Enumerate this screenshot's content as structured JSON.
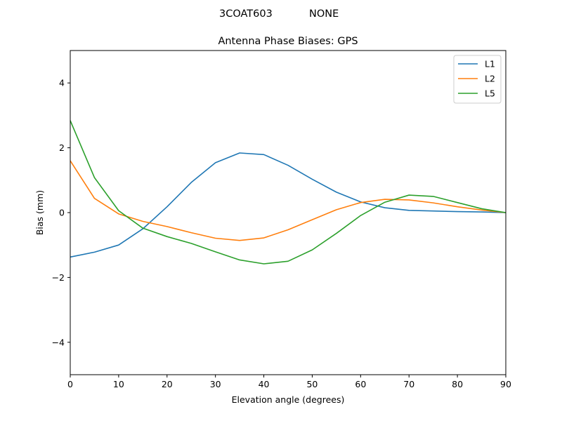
{
  "figure": {
    "suptitle_left": "3COAT603",
    "suptitle_right": "NONE"
  },
  "chart_data": {
    "type": "line",
    "title": "Antenna Phase Biases: GPS",
    "xlabel": "Elevation angle (degrees)",
    "ylabel": "Bias (mm)",
    "xlim": [
      0,
      90
    ],
    "ylim": [
      -5,
      5
    ],
    "xticks": [
      0,
      10,
      20,
      30,
      40,
      50,
      60,
      70,
      80,
      90
    ],
    "xtick_labels": [
      "0",
      "10",
      "20",
      "30",
      "40",
      "50",
      "60",
      "70",
      "80",
      "90"
    ],
    "yticks": [
      -4,
      -2,
      0,
      2,
      4
    ],
    "ytick_labels": [
      "−4",
      "−2",
      "0",
      "2",
      "4"
    ],
    "legend_position": "upper right",
    "x": [
      0,
      5,
      10,
      15,
      20,
      25,
      30,
      35,
      40,
      45,
      50,
      55,
      60,
      65,
      70,
      75,
      80,
      85,
      90
    ],
    "series": [
      {
        "name": "L1",
        "color": "#1f77b4",
        "values": [
          -1.37,
          -1.22,
          -1.0,
          -0.5,
          0.18,
          0.93,
          1.54,
          1.84,
          1.79,
          1.46,
          1.03,
          0.63,
          0.33,
          0.15,
          0.07,
          0.05,
          0.03,
          0.02,
          0.0
        ]
      },
      {
        "name": "L2",
        "color": "#ff7f0e",
        "values": [
          1.6,
          0.44,
          -0.04,
          -0.27,
          -0.43,
          -0.62,
          -0.79,
          -0.86,
          -0.78,
          -0.53,
          -0.22,
          0.09,
          0.31,
          0.41,
          0.39,
          0.3,
          0.18,
          0.08,
          0.0
        ]
      },
      {
        "name": "L5",
        "color": "#2ca02c",
        "values": [
          2.84,
          1.08,
          0.06,
          -0.48,
          -0.74,
          -0.95,
          -1.21,
          -1.46,
          -1.58,
          -1.5,
          -1.15,
          -0.64,
          -0.09,
          0.32,
          0.54,
          0.5,
          0.31,
          0.12,
          0.0
        ]
      }
    ]
  }
}
